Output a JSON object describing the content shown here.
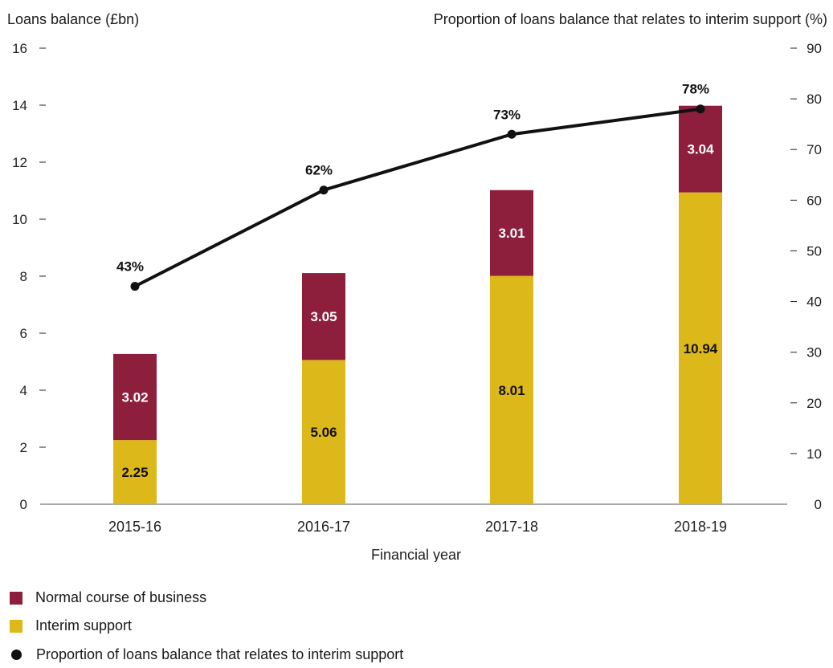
{
  "chart_data": {
    "type": "bar",
    "stacked": true,
    "xlabel": "Financial year",
    "ylabel_left": "Loans balance (£bn)",
    "ylabel_right": "Proportion of loans balance that relates to interim support (%)",
    "categories": [
      "2015-16",
      "2016-17",
      "2017-18",
      "2018-19"
    ],
    "ylim_left": [
      0,
      16
    ],
    "yticks_left": [
      0,
      2,
      4,
      6,
      8,
      10,
      12,
      14,
      16
    ],
    "ylim_right": [
      0,
      90
    ],
    "yticks_right": [
      0,
      10,
      20,
      30,
      40,
      50,
      60,
      70,
      80,
      90
    ],
    "grid": false,
    "legend_position": "bottom-left",
    "series": [
      {
        "name": "Interim support",
        "type": "bar",
        "axis": "left",
        "color": "#DDB81A",
        "values": [
          2.25,
          5.06,
          8.01,
          10.94
        ],
        "labels": [
          "2.25",
          "5.06",
          "8.01",
          "10.94"
        ]
      },
      {
        "name": "Normal course of business",
        "type": "bar",
        "axis": "left",
        "color": "#8E1F3C",
        "values": [
          3.02,
          3.05,
          3.01,
          3.04
        ],
        "labels": [
          "3.02",
          "3.05",
          "3.01",
          "3.04"
        ]
      },
      {
        "name": "Proportion of loans balance that relates to interim support",
        "type": "line",
        "axis": "right",
        "color": "#111111",
        "values": [
          43,
          62,
          73,
          78
        ],
        "labels": [
          "43%",
          "62%",
          "73%",
          "78%"
        ]
      }
    ]
  },
  "legend": [
    {
      "label": "Normal course of business",
      "color": "#8E1F3C"
    },
    {
      "label": "Interim support",
      "color": "#DDB81A"
    },
    {
      "label": "Proportion of loans balance that relates to interim support",
      "color": "#111111"
    }
  ]
}
